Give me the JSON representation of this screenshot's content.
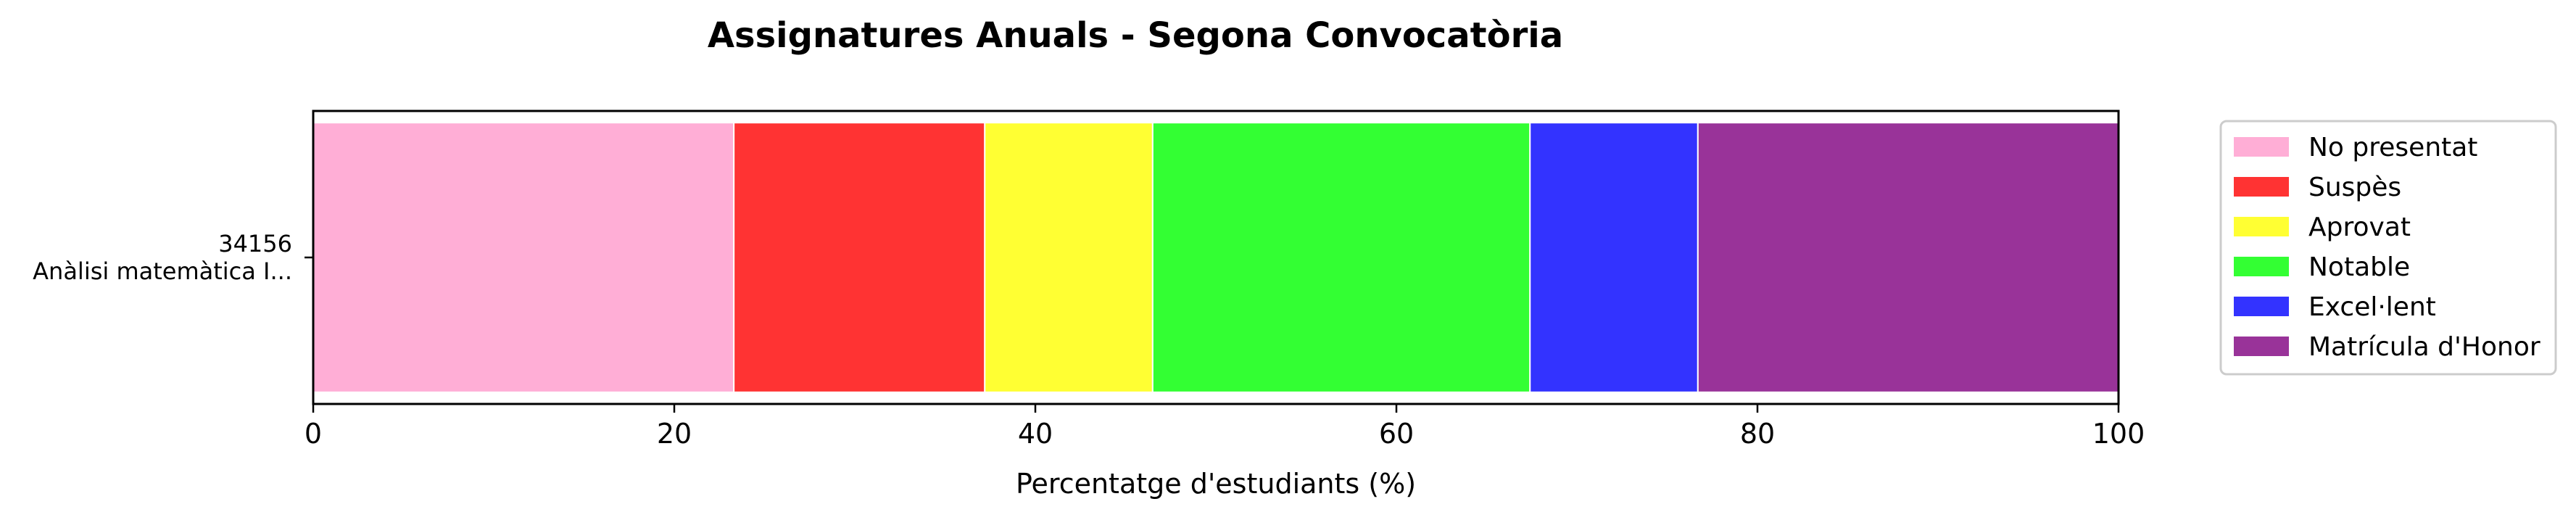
{
  "chart_data": {
    "type": "bar",
    "orientation": "horizontal",
    "stacked": true,
    "title": "Assignatures Anuals - Segona Convocatòria",
    "xlabel": "Percentatge d'estudiants (%)",
    "ylabel": "",
    "xlim": [
      0,
      100
    ],
    "xticks": [
      "0",
      "20",
      "40",
      "60",
      "80",
      "100"
    ],
    "categories": [
      {
        "code": "34156",
        "name": "Anàlisi matemàtica I..."
      }
    ],
    "series": [
      {
        "name": "No presentat",
        "color": "#ffaed6",
        "values": [
          23.3
        ]
      },
      {
        "name": "Suspès",
        "color": "#ff3333",
        "values": [
          13.9
        ]
      },
      {
        "name": "Aprovat",
        "color": "#ffff33",
        "values": [
          9.3
        ]
      },
      {
        "name": "Notable",
        "color": "#33ff33",
        "values": [
          20.9
        ]
      },
      {
        "name": "Excel·lent",
        "color": "#3333ff",
        "values": [
          9.3
        ]
      },
      {
        "name": "Matrícula d'Honor",
        "color": "#993399",
        "values": [
          23.3
        ]
      }
    ],
    "grid": false,
    "legend_position": "outside-right"
  }
}
